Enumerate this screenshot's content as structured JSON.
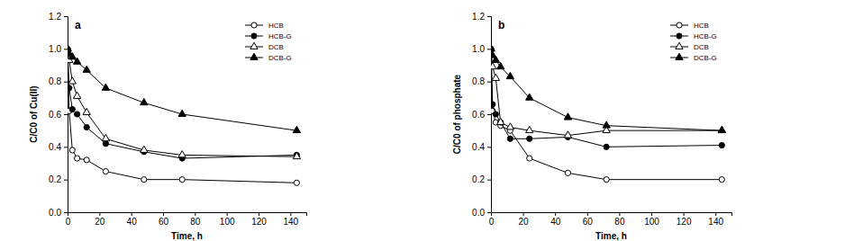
{
  "chart_data": [
    {
      "type": "line",
      "title": "a",
      "x_label": "Time, h",
      "y_label": "C/C0 of Cu(II)",
      "x": [
        0,
        1,
        3,
        6,
        12,
        24,
        48,
        72,
        144
      ],
      "xlim": [
        0,
        150
      ],
      "xticks": [
        0,
        20,
        40,
        60,
        80,
        100,
        120,
        140
      ],
      "ylim": [
        0,
        1.2
      ],
      "yticks": [
        {
          "value": 0,
          "label": "0.0"
        },
        {
          "value": 0.2,
          "label": "0.2"
        },
        {
          "value": 0.4,
          "label": "0.4"
        },
        {
          "value": 0.6,
          "label": "0.6"
        },
        {
          "value": 0.8,
          "label": "0.8"
        },
        {
          "value": 1.0,
          "label": "1.0"
        },
        {
          "value": 1.2,
          "label": "1.2"
        }
      ],
      "legend": "upper right",
      "series": [
        {
          "name": "HCB",
          "color": "#000000",
          "marker": "circle-open",
          "line_style": "solid",
          "values": [
            1.0,
            0.62,
            0.38,
            0.33,
            0.32,
            0.25,
            0.2,
            0.2,
            0.18
          ]
        },
        {
          "name": "HCB-G",
          "color": "#000000",
          "marker": "circle",
          "line_style": "solid",
          "values": [
            1.0,
            0.76,
            0.63,
            0.6,
            0.52,
            0.42,
            0.37,
            0.33,
            0.35
          ]
        },
        {
          "name": "DCB",
          "color": "#000000",
          "marker": "triangle-open",
          "line_style": "solid",
          "values": [
            1.0,
            0.93,
            0.8,
            0.71,
            0.61,
            0.45,
            0.38,
            0.35,
            0.34
          ]
        },
        {
          "name": "DCB-G",
          "color": "#000000",
          "marker": "triangle",
          "line_style": "solid",
          "values": [
            1.0,
            0.97,
            0.95,
            0.92,
            0.87,
            0.76,
            0.67,
            0.6,
            0.5
          ]
        }
      ]
    },
    {
      "type": "line",
      "title": "b",
      "x_label": "Time, h",
      "y_label": "C/C0 of phosphate",
      "x": [
        0,
        1,
        3,
        6,
        12,
        24,
        48,
        72,
        144
      ],
      "xlim": [
        0,
        150
      ],
      "xticks": [
        0,
        20,
        40,
        60,
        80,
        100,
        120,
        140
      ],
      "ylim": [
        0,
        1.2
      ],
      "yticks": [
        {
          "value": 0,
          "label": "0.0"
        },
        {
          "value": 0.2,
          "label": "0.2"
        },
        {
          "value": 0.4,
          "label": "0.4"
        },
        {
          "value": 0.6,
          "label": "0.6"
        },
        {
          "value": 0.8,
          "label": "0.8"
        },
        {
          "value": 1.0,
          "label": "1.0"
        },
        {
          "value": 1.2,
          "label": "1.2"
        }
      ],
      "legend": "upper right",
      "series": [
        {
          "name": "HCB",
          "color": "#000000",
          "marker": "circle-open",
          "line_style": "solid",
          "values": [
            1.0,
            0.62,
            0.55,
            0.53,
            0.5,
            0.33,
            0.24,
            0.2,
            0.2
          ]
        },
        {
          "name": "HCB-G",
          "color": "#000000",
          "marker": "circle",
          "line_style": "solid",
          "values": [
            1.0,
            0.66,
            0.6,
            0.55,
            0.45,
            0.45,
            0.46,
            0.4,
            0.41
          ]
        },
        {
          "name": "DCB",
          "color": "#000000",
          "marker": "triangle-open",
          "line_style": "solid",
          "values": [
            1.0,
            0.89,
            0.82,
            0.55,
            0.52,
            0.5,
            0.47,
            0.5,
            0.5
          ]
        },
        {
          "name": "DCB-G",
          "color": "#000000",
          "marker": "triangle",
          "line_style": "solid",
          "values": [
            1.0,
            0.96,
            0.93,
            0.89,
            0.83,
            0.7,
            0.58,
            0.53,
            0.5
          ]
        }
      ]
    }
  ]
}
